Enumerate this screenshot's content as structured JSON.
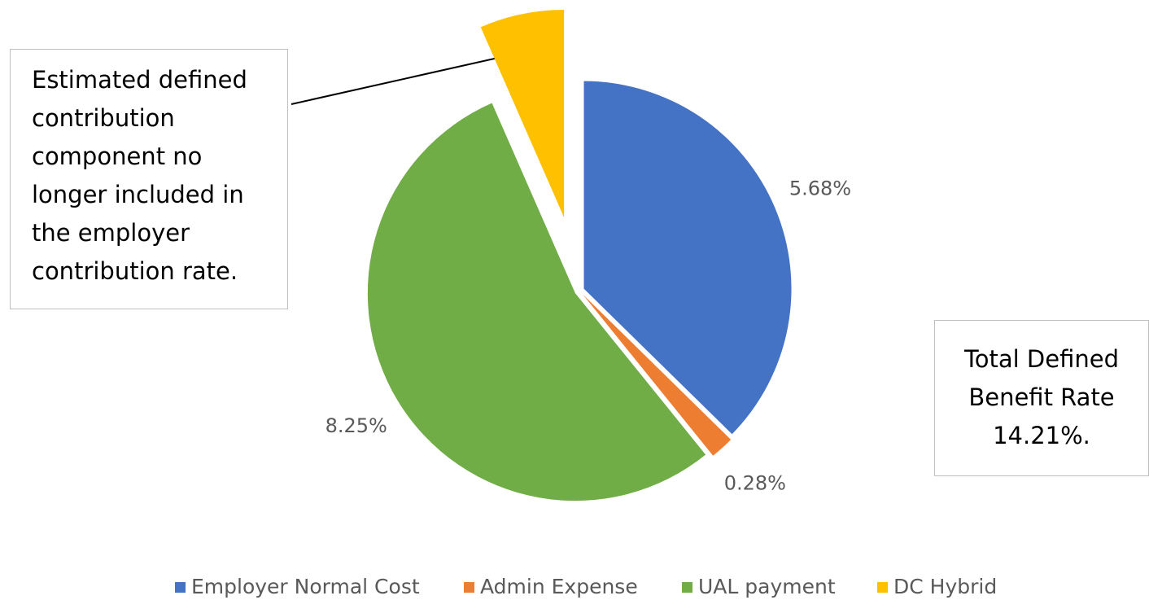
{
  "chart_data": {
    "type": "pie",
    "categories": [
      "Employer Normal Cost",
      "Admin Expense",
      "UAL payment",
      "DC Hybrid"
    ],
    "values": [
      5.68,
      0.28,
      8.25,
      1.0
    ],
    "value_labels": [
      "5.68%",
      "0.28%",
      "8.25%",
      null
    ],
    "colors": [
      "#4472c4",
      "#ed7d31",
      "#70ad47",
      "#ffc000"
    ],
    "legend": "bottom",
    "annotations": [
      "Estimated defined contribution component no longer included in the employer contribution rate.",
      "Total Defined Benefit Rate 14.21%."
    ]
  }
}
